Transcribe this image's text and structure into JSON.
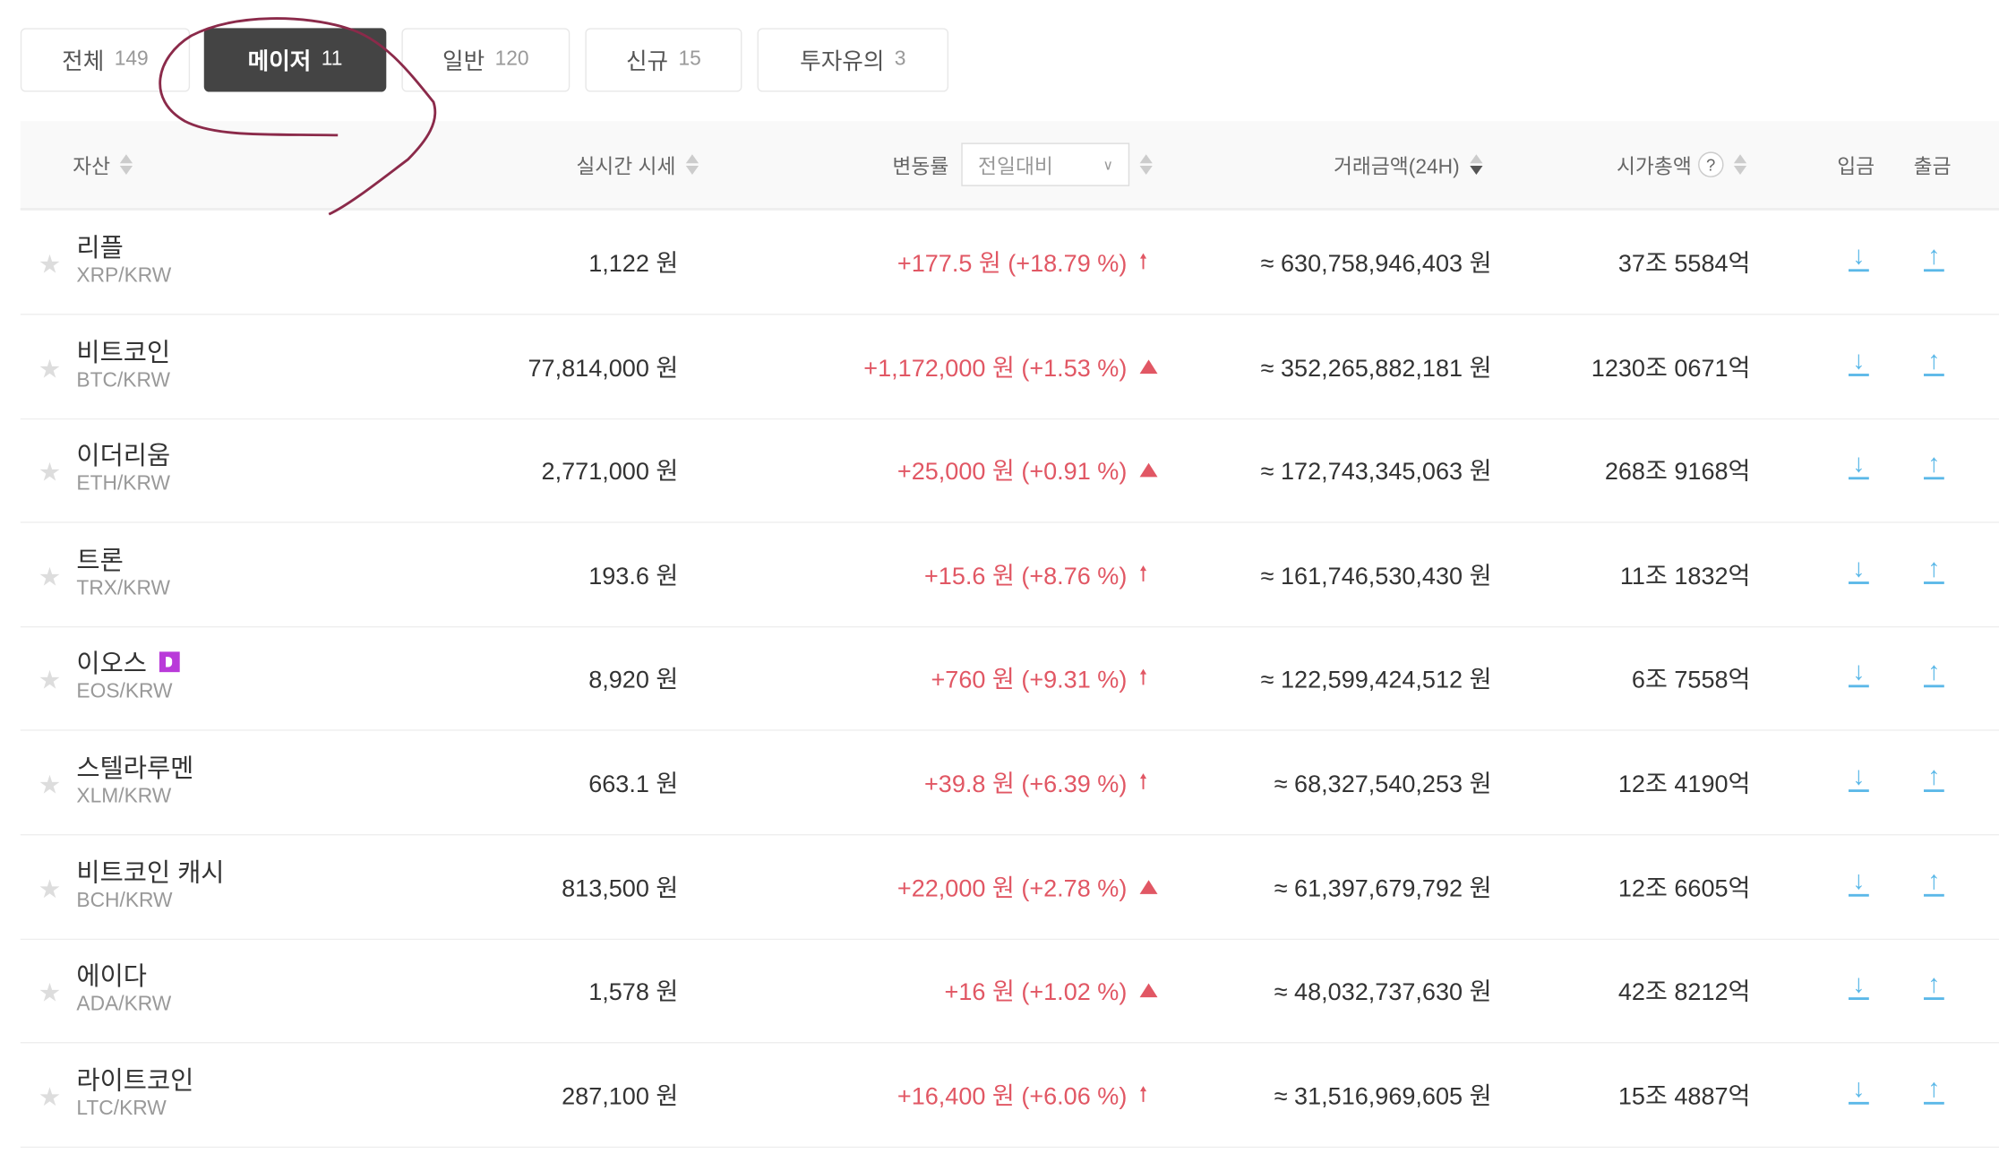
{
  "tabs": [
    {
      "label": "전체",
      "count": "149",
      "active": false
    },
    {
      "label": "메이저",
      "count": "11",
      "active": true
    },
    {
      "label": "일반",
      "count": "120",
      "active": false
    },
    {
      "label": "신규",
      "count": "15",
      "active": false
    },
    {
      "label": "투자유의",
      "count": "3",
      "active": false
    }
  ],
  "header": {
    "asset": "자산",
    "price": "실시간 시세",
    "change": "변동률",
    "change_select": "전일대비",
    "volume": "거래금액(24H)",
    "market_cap": "시가총액",
    "help": "?",
    "deposit": "입금",
    "withdraw": "출금"
  },
  "colors": {
    "up": "#e15764",
    "transfer": "#5bb8e8",
    "active_tab": "#444444",
    "annotation": "#8b2a4a"
  },
  "rows": [
    {
      "name": "리플",
      "symbol": "XRP/KRW",
      "price": "1,122 원",
      "change": "+177.5 원 (+18.79 %)",
      "indicator": "arrow",
      "volume": "≈ 630,758,946,403 원",
      "market_cap": "37조 5584억"
    },
    {
      "name": "비트코인",
      "symbol": "BTC/KRW",
      "price": "77,814,000 원",
      "change": "+1,172,000 원 (+1.53 %)",
      "indicator": "triangle",
      "volume": "≈ 352,265,882,181 원",
      "market_cap": "1230조 0671억"
    },
    {
      "name": "이더리움",
      "symbol": "ETH/KRW",
      "price": "2,771,000 원",
      "change": "+25,000 원 (+0.91 %)",
      "indicator": "triangle",
      "volume": "≈ 172,743,345,063 원",
      "market_cap": "268조 9168억"
    },
    {
      "name": "트론",
      "symbol": "TRX/KRW",
      "price": "193.6 원",
      "change": "+15.6 원 (+8.76 %)",
      "indicator": "arrow",
      "volume": "≈ 161,746,530,430 원",
      "market_cap": "11조 1832억"
    },
    {
      "name": "이오스",
      "symbol": "EOS/KRW",
      "price": "8,920 원",
      "change": "+760 원 (+9.31 %)",
      "indicator": "arrow",
      "volume": "≈ 122,599,424,512 원",
      "market_cap": "6조 7558억",
      "badge": true
    },
    {
      "name": "스텔라루멘",
      "symbol": "XLM/KRW",
      "price": "663.1 원",
      "change": "+39.8 원 (+6.39 %)",
      "indicator": "arrow",
      "volume": "≈ 68,327,540,253 원",
      "market_cap": "12조 4190억"
    },
    {
      "name": "비트코인 캐시",
      "symbol": "BCH/KRW",
      "price": "813,500 원",
      "change": "+22,000 원 (+2.78 %)",
      "indicator": "triangle",
      "volume": "≈ 61,397,679,792 원",
      "market_cap": "12조 6605억"
    },
    {
      "name": "에이다",
      "symbol": "ADA/KRW",
      "price": "1,578 원",
      "change": "+16 원 (+1.02 %)",
      "indicator": "triangle",
      "volume": "≈ 48,032,737,630 원",
      "market_cap": "42조 8212억"
    },
    {
      "name": "라이트코인",
      "symbol": "LTC/KRW",
      "price": "287,100 원",
      "change": "+16,400 원 (+6.06 %)",
      "indicator": "arrow",
      "volume": "≈ 31,516,969,605 원",
      "market_cap": "15조 4887억"
    }
  ]
}
